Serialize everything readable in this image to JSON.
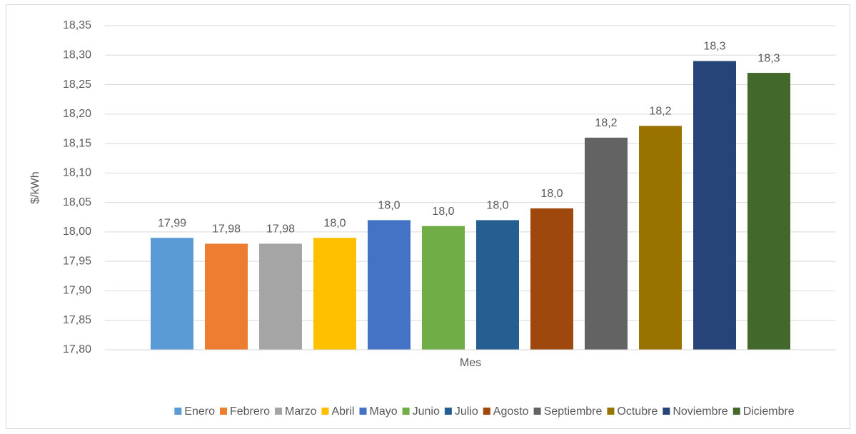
{
  "chart_data": {
    "type": "bar",
    "y_label": "$/kWh",
    "categories": [
      "Mes"
    ],
    "series": [
      {
        "name": "Enero",
        "color": "#5b9bd5",
        "values": [
          17.99
        ],
        "value_labels": [
          "17,99"
        ]
      },
      {
        "name": "Febrero",
        "color": "#ed7d31",
        "values": [
          17.98
        ],
        "value_labels": [
          "17,98"
        ]
      },
      {
        "name": "Marzo",
        "color": "#a5a5a5",
        "values": [
          17.98
        ],
        "value_labels": [
          "17,98"
        ]
      },
      {
        "name": "Abril",
        "color": "#ffc000",
        "values": [
          17.99
        ],
        "value_labels": [
          "18,0"
        ]
      },
      {
        "name": "Mayo",
        "color": "#4472c4",
        "values": [
          18.02
        ],
        "value_labels": [
          "18,0"
        ]
      },
      {
        "name": "Junio",
        "color": "#70ad47",
        "values": [
          18.01
        ],
        "value_labels": [
          "18,0"
        ]
      },
      {
        "name": "Julio",
        "color": "#255e91",
        "values": [
          18.02
        ],
        "value_labels": [
          "18,0"
        ]
      },
      {
        "name": "Agosto",
        "color": "#9e480e",
        "values": [
          18.04
        ],
        "value_labels": [
          "18,0"
        ]
      },
      {
        "name": "Septiembre",
        "color": "#636363",
        "values": [
          18.16
        ],
        "value_labels": [
          "18,2"
        ]
      },
      {
        "name": "Octubre",
        "color": "#997300",
        "values": [
          18.18
        ],
        "value_labels": [
          "18,2"
        ]
      },
      {
        "name": "Noviembre",
        "color": "#264478",
        "values": [
          18.29
        ],
        "value_labels": [
          "18,3"
        ]
      },
      {
        "name": "Diciembre",
        "color": "#43682b",
        "values": [
          18.27
        ],
        "value_labels": [
          "18,3"
        ]
      }
    ],
    "ylim": [
      17.8,
      18.35
    ],
    "yticks": [
      {
        "value": 17.8,
        "label": "17,80"
      },
      {
        "value": 17.85,
        "label": "17,85"
      },
      {
        "value": 17.9,
        "label": "17,90"
      },
      {
        "value": 17.95,
        "label": "17,95"
      },
      {
        "value": 18.0,
        "label": "18,00"
      },
      {
        "value": 18.05,
        "label": "18,05"
      },
      {
        "value": 18.1,
        "label": "18,10"
      },
      {
        "value": 18.15,
        "label": "18,15"
      },
      {
        "value": 18.2,
        "label": "18,20"
      },
      {
        "value": 18.25,
        "label": "18,25"
      },
      {
        "value": 18.3,
        "label": "18,30"
      },
      {
        "value": 18.35,
        "label": "18,35"
      }
    ],
    "grid": true,
    "legend": "bottom"
  }
}
